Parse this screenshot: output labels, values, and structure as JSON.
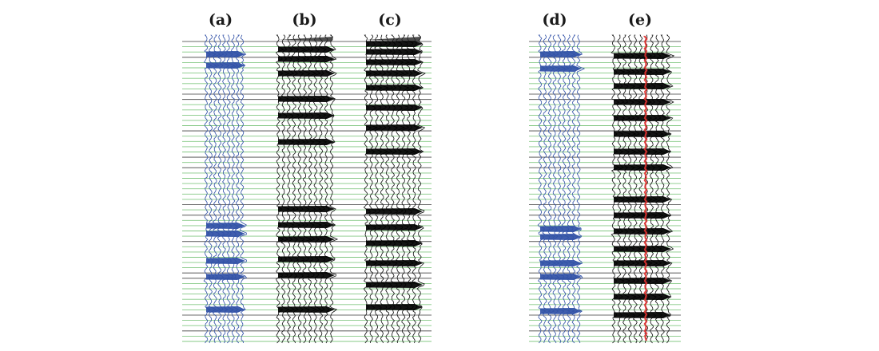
{
  "figure": {
    "panels": [
      {
        "id": "a",
        "label": "(a)",
        "wiggle_color": "#2f4fa6",
        "fill_color": "#2f4fa6"
      },
      {
        "id": "b",
        "label": "(b)",
        "wiggle_color": "#111111",
        "fill_color": "#000000"
      },
      {
        "id": "c",
        "label": "(c)",
        "wiggle_color": "#111111",
        "fill_color": "#000000"
      },
      {
        "id": "d",
        "label": "(d)",
        "wiggle_color": "#2f4fa6",
        "fill_color": "#2f4fa6"
      },
      {
        "id": "e",
        "label": "(e)",
        "wiggle_color": "#111111",
        "fill_color": "#000000",
        "marker_color": "#e0312f"
      }
    ],
    "colors": {
      "grid_green": "#6fbf6f",
      "grid_black": "#3a3a3a",
      "background": "#ffffff"
    }
  }
}
